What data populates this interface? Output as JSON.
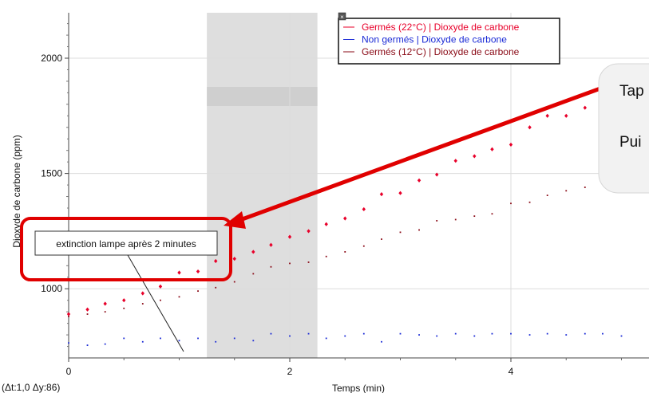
{
  "chart_data": {
    "type": "scatter",
    "xlabel": "Temps (min)",
    "ylabel": "Dioxyde de carbone (ppm)",
    "xlim": [
      0,
      5.2
    ],
    "ylim": [
      700,
      2200
    ],
    "x_ticks": [
      0,
      2,
      4
    ],
    "y_ticks": [
      1000,
      1500,
      2000
    ],
    "grid": "vertical and horizontal at ticks",
    "legend_position": "top-right",
    "selection_x_range": [
      1.25,
      2.25
    ],
    "series": [
      {
        "name": "Germés (22°C) | Dioxyde de carbone",
        "color": "#e8002a",
        "marker": "diamond",
        "points": [
          [
            0.0,
            890
          ],
          [
            0.17,
            910
          ],
          [
            0.33,
            935
          ],
          [
            0.5,
            950
          ],
          [
            0.67,
            980
          ],
          [
            0.83,
            1010
          ],
          [
            1.0,
            1070
          ],
          [
            1.17,
            1075
          ],
          [
            1.33,
            1120
          ],
          [
            1.5,
            1130
          ],
          [
            1.67,
            1160
          ],
          [
            1.83,
            1190
          ],
          [
            2.0,
            1225
          ],
          [
            2.17,
            1250
          ],
          [
            2.33,
            1280
          ],
          [
            2.5,
            1305
          ],
          [
            2.67,
            1345
          ],
          [
            2.83,
            1410
          ],
          [
            3.0,
            1415
          ],
          [
            3.17,
            1470
          ],
          [
            3.33,
            1495
          ],
          [
            3.5,
            1555
          ],
          [
            3.67,
            1575
          ],
          [
            3.83,
            1605
          ],
          [
            4.0,
            1625
          ],
          [
            4.17,
            1700
          ],
          [
            4.33,
            1750
          ],
          [
            4.5,
            1750
          ],
          [
            4.67,
            1785
          ]
        ]
      },
      {
        "name": "Non germés | Dioxyde de carbone",
        "color": "#1a2ad6",
        "marker": "dot",
        "points": [
          [
            0.0,
            765
          ],
          [
            0.17,
            755
          ],
          [
            0.33,
            760
          ],
          [
            0.5,
            785
          ],
          [
            0.67,
            770
          ],
          [
            0.83,
            785
          ],
          [
            1.0,
            775
          ],
          [
            1.17,
            785
          ],
          [
            1.33,
            770
          ],
          [
            1.5,
            785
          ],
          [
            1.67,
            775
          ],
          [
            1.83,
            805
          ],
          [
            2.0,
            795
          ],
          [
            2.17,
            805
          ],
          [
            2.33,
            785
          ],
          [
            2.5,
            795
          ],
          [
            2.67,
            805
          ],
          [
            2.83,
            770
          ],
          [
            3.0,
            805
          ],
          [
            3.17,
            800
          ],
          [
            3.33,
            795
          ],
          [
            3.5,
            805
          ],
          [
            3.67,
            795
          ],
          [
            3.83,
            805
          ],
          [
            4.0,
            805
          ],
          [
            4.17,
            800
          ],
          [
            4.33,
            805
          ],
          [
            4.5,
            800
          ],
          [
            4.67,
            805
          ],
          [
            4.83,
            805
          ],
          [
            5.0,
            795
          ]
        ]
      },
      {
        "name": "Germés (12°C) | Dioxyde de carbone",
        "color": "#8a0a16",
        "marker": "dot",
        "points": [
          [
            0.0,
            880
          ],
          [
            0.17,
            890
          ],
          [
            0.33,
            900
          ],
          [
            0.5,
            915
          ],
          [
            0.67,
            935
          ],
          [
            0.83,
            950
          ],
          [
            1.0,
            965
          ],
          [
            1.17,
            990
          ],
          [
            1.33,
            1005
          ],
          [
            1.5,
            1030
          ],
          [
            1.67,
            1065
          ],
          [
            1.83,
            1095
          ],
          [
            2.0,
            1110
          ],
          [
            2.17,
            1115
          ],
          [
            2.33,
            1140
          ],
          [
            2.5,
            1160
          ],
          [
            2.67,
            1185
          ],
          [
            2.83,
            1215
          ],
          [
            3.0,
            1245
          ],
          [
            3.17,
            1255
          ],
          [
            3.33,
            1295
          ],
          [
            3.5,
            1300
          ],
          [
            3.67,
            1315
          ],
          [
            3.83,
            1325
          ],
          [
            4.0,
            1370
          ],
          [
            4.17,
            1375
          ],
          [
            4.33,
            1405
          ],
          [
            4.5,
            1425
          ],
          [
            4.67,
            1440
          ]
        ]
      }
    ],
    "annotations": [
      {
        "text": "extinction lampe après 2 minutes",
        "x": 1.03,
        "y": 800
      }
    ],
    "delta_readout": "(Δt:1,0  Δy:86)"
  },
  "callout": {
    "lines": [
      "Tap",
      "Pui"
    ],
    "border_color": "#e00000"
  }
}
